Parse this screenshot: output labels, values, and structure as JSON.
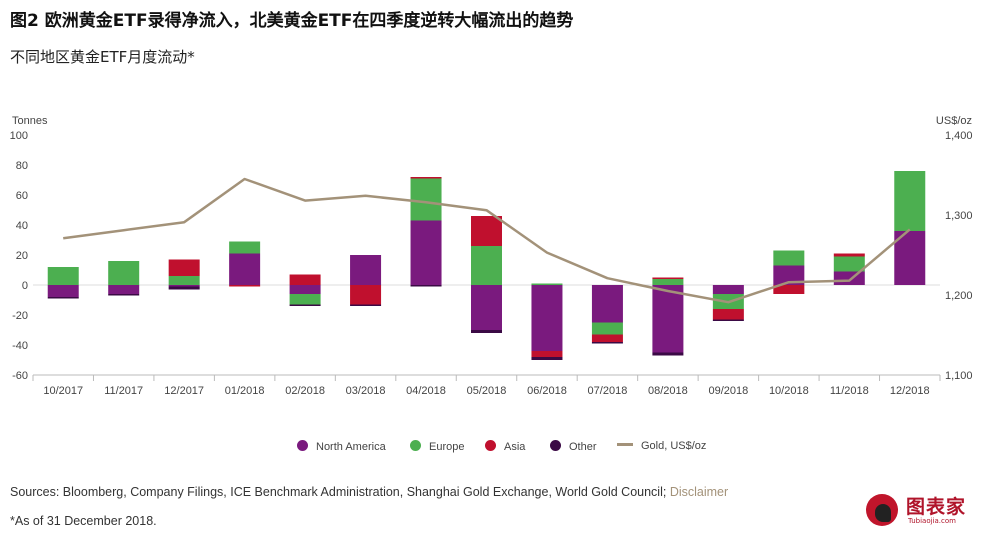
{
  "header": {
    "title": "图2 欧洲黄金ETF录得净流入，北美黄金ETF在四季度逆转大幅流出的趋势",
    "subtitle": "不同地区黄金ETF月度流动*"
  },
  "chart_data": {
    "type": "bar",
    "stacked": true,
    "categories": [
      "10/2017",
      "11/2017",
      "12/2017",
      "01/2018",
      "02/2018",
      "03/2018",
      "04/2018",
      "05/2018",
      "06/2018",
      "07/2018",
      "08/2018",
      "09/2018",
      "10/2018",
      "11/2018",
      "12/2018"
    ],
    "series": [
      {
        "name": "North America",
        "color": "#7a1a7e",
        "values": [
          -8,
          -6,
          -1,
          21,
          -6,
          20,
          43,
          -30,
          -44,
          -25,
          -45,
          -6,
          13,
          9,
          36
        ]
      },
      {
        "name": "Europe",
        "color": "#4caf50",
        "values": [
          12,
          16,
          6,
          8,
          -7,
          0,
          28,
          26,
          1,
          -8,
          4,
          -10,
          10,
          10,
          40
        ]
      },
      {
        "name": "Asia",
        "color": "#c0102e",
        "values": [
          0,
          0,
          11,
          -1,
          7,
          -13,
          1,
          20,
          -4,
          -5,
          1,
          -7,
          -6,
          2,
          0
        ]
      },
      {
        "name": "Other",
        "color": "#3b0a45",
        "values": [
          -1,
          -1,
          -2,
          0,
          -1,
          -1,
          -1,
          -2,
          -2,
          -1,
          -2,
          -1,
          0,
          0,
          0
        ]
      }
    ],
    "line_series": {
      "name": "Gold, US$/oz",
      "color": "#a39279",
      "values": [
        1271,
        1281,
        1291,
        1345,
        1318,
        1324,
        1316,
        1306,
        1253,
        1221,
        1205,
        1191,
        1216,
        1218,
        1282
      ]
    },
    "ylabel_left": "Tonnes",
    "ylabel_right": "US$/oz",
    "ylim_left": [
      -60,
      100
    ],
    "yticks_left": [
      "100",
      "80",
      "60",
      "40",
      "20",
      "0",
      "-20",
      "-40",
      "-60"
    ],
    "ylim_right": [
      1100,
      1400
    ],
    "yticks_right": [
      "1,400",
      "1,300",
      "1,200",
      "1,100"
    ],
    "grid": false,
    "legend_position": "bottom-center"
  },
  "legend": {
    "items": [
      {
        "label": "North America",
        "color": "#7a1a7e",
        "kind": "dot"
      },
      {
        "label": "Europe",
        "color": "#4caf50",
        "kind": "dot"
      },
      {
        "label": "Asia",
        "color": "#c0102e",
        "kind": "dot"
      },
      {
        "label": "Other",
        "color": "#3b0a45",
        "kind": "dot"
      },
      {
        "label": "Gold, US$/oz",
        "color": "#a39279",
        "kind": "line"
      }
    ]
  },
  "footer": {
    "sources": "Sources: Bloomberg, Company Filings, ICE Benchmark Administration, Shanghai Gold Exchange, World Gold Council; ",
    "disclaimer": "Disclaimer",
    "note": "*As of 31 December 2018."
  },
  "logo": {
    "name": "图表家",
    "sub": "Tubiaojia.com"
  }
}
